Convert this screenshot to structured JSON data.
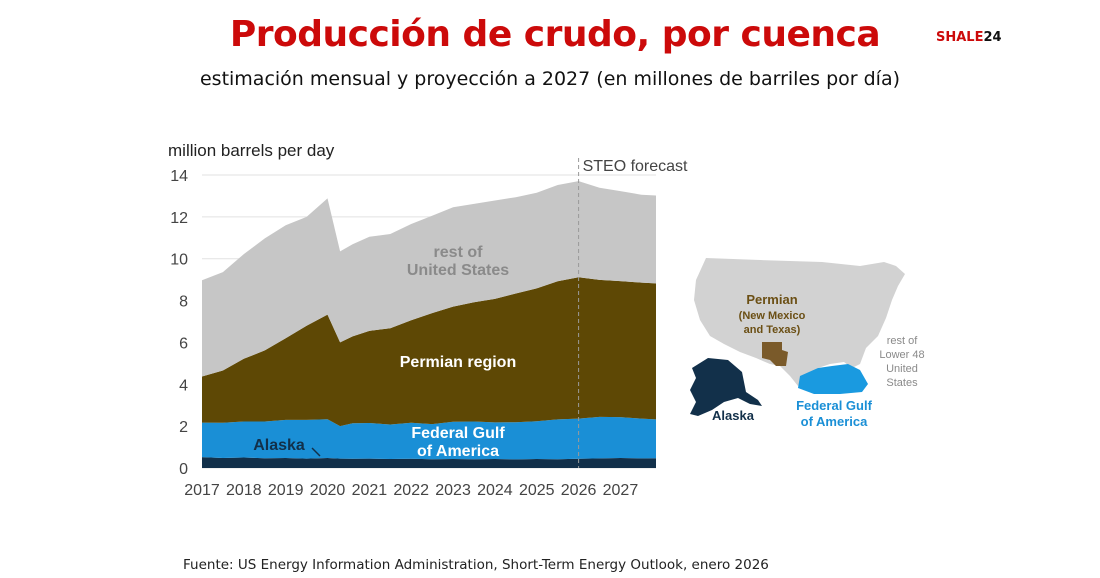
{
  "header": {
    "title": "Producción de crudo, por cuenca",
    "subtitle": "estimación mensual y proyección a 2027 (en millones de barriles por día)",
    "brand_a": "SHALE",
    "brand_b": "24"
  },
  "footer": {
    "source": "Fuente: US Energy Information Administration, Short-Term Energy Outlook, enero 2026"
  },
  "chart_data": {
    "type": "area",
    "stacked": true,
    "ylabel": "million barrels per day",
    "xlabel": "",
    "ylim": [
      0,
      14
    ],
    "yticks": [
      "0",
      "2",
      "4",
      "6",
      "8",
      "10",
      "12",
      "14"
    ],
    "xticks": [
      "2017",
      "2018",
      "2019",
      "2020",
      "2021",
      "2022",
      "2023",
      "2024",
      "2025",
      "2026",
      "2027"
    ],
    "forecast_label": "STEO forecast",
    "forecast_start": 2026.0,
    "series": [
      {
        "name": "Alaska",
        "color": "#12304a",
        "x": [
          2017,
          2017.5,
          2018,
          2018.5,
          2019,
          2019.5,
          2020,
          2020.3,
          2020.6,
          2021,
          2021.5,
          2022,
          2022.5,
          2023,
          2023.5,
          2024,
          2024.5,
          2025,
          2025.5,
          2026,
          2026.5,
          2027,
          2027.5,
          2027.85
        ],
        "values": [
          0.52,
          0.48,
          0.5,
          0.47,
          0.48,
          0.45,
          0.48,
          0.45,
          0.44,
          0.45,
          0.43,
          0.44,
          0.42,
          0.43,
          0.42,
          0.43,
          0.41,
          0.43,
          0.42,
          0.44,
          0.46,
          0.48,
          0.46,
          0.47
        ]
      },
      {
        "name": "Federal Gulf of America",
        "color": "#1a8fd6",
        "x": [
          2017,
          2017.5,
          2018,
          2018.5,
          2019,
          2019.5,
          2020,
          2020.3,
          2020.6,
          2021,
          2021.5,
          2022,
          2022.5,
          2023,
          2023.5,
          2024,
          2024.5,
          2025,
          2025.5,
          2026,
          2026.5,
          2027,
          2027.5,
          2027.85
        ],
        "values": [
          1.65,
          1.68,
          1.72,
          1.75,
          1.82,
          1.85,
          1.85,
          1.55,
          1.7,
          1.7,
          1.65,
          1.72,
          1.68,
          1.78,
          1.8,
          1.75,
          1.78,
          1.8,
          1.9,
          1.92,
          1.98,
          1.95,
          1.9,
          1.85
        ]
      },
      {
        "name": "Permian region",
        "color": "#5e4805",
        "x": [
          2017,
          2017.5,
          2018,
          2018.5,
          2019,
          2019.5,
          2020,
          2020.3,
          2020.6,
          2021,
          2021.5,
          2022,
          2022.5,
          2023,
          2023.5,
          2024,
          2024.5,
          2025,
          2025.5,
          2026,
          2026.5,
          2027,
          2027.5,
          2027.85
        ],
        "values": [
          2.2,
          2.5,
          3.0,
          3.4,
          3.9,
          4.5,
          5.0,
          4.0,
          4.15,
          4.4,
          4.6,
          4.9,
          5.3,
          5.5,
          5.7,
          5.9,
          6.15,
          6.35,
          6.6,
          6.75,
          6.55,
          6.5,
          6.5,
          6.5
        ]
      },
      {
        "name": "rest of United States",
        "color": "#c6c6c6",
        "x": [
          2017,
          2017.5,
          2018,
          2018.5,
          2019,
          2019.5,
          2020,
          2020.3,
          2020.6,
          2021,
          2021.5,
          2022,
          2022.5,
          2023,
          2023.5,
          2024,
          2024.5,
          2025,
          2025.5,
          2026,
          2026.5,
          2027,
          2027.5,
          2027.85
        ],
        "values": [
          4.6,
          4.7,
          5.0,
          5.35,
          5.4,
          5.2,
          5.55,
          4.35,
          4.4,
          4.5,
          4.5,
          4.6,
          4.65,
          4.75,
          4.7,
          4.7,
          4.6,
          4.57,
          4.6,
          4.6,
          4.4,
          4.3,
          4.2,
          4.2
        ]
      }
    ]
  },
  "map": {
    "labels": {
      "permian": "Permian",
      "permian_sub1": "(New Mexico",
      "permian_sub2": "and Texas)",
      "rest1": "rest of",
      "rest2": "Lower 48",
      "rest3": "United",
      "rest4": "States",
      "alaska": "Alaska",
      "gulf1": "Federal Gulf",
      "gulf2": "of America"
    },
    "colors": {
      "land": "#d2d2d2",
      "permian": "#7a5a2a",
      "alaska": "#12304a",
      "gulf": "#1a9ae0"
    }
  },
  "chart_labels": {
    "rest1": "rest of",
    "rest2": "United States",
    "permian": "Permian region",
    "gulf1": "Federal Gulf",
    "gulf2": "of America",
    "alaska": "Alaska"
  }
}
